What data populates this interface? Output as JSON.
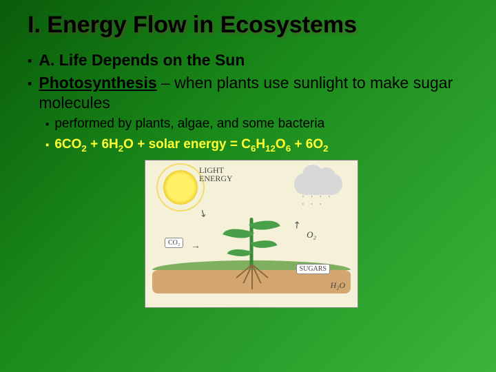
{
  "title": "I. Energy Flow in Ecosystems",
  "bullets": {
    "b1": "A. Life Depends on the Sun",
    "b2_term": "Photosynthesis",
    "b2_rest": " – when plants use sunlight to make sugar molecules",
    "b3": "performed by plants, algae, and some bacteria",
    "eq_p1": "6CO",
    "eq_s1": "2",
    "eq_p2": " + 6H",
    "eq_s2": "2",
    "eq_p3": "O + solar energy = C",
    "eq_s3": "6",
    "eq_p4": "H",
    "eq_s4": "12",
    "eq_p5": "O",
    "eq_s5": "6",
    "eq_p6": " + 6O",
    "eq_s6": "2"
  },
  "illustration": {
    "sun_label_l1": "LIGHT",
    "sun_label_l2": "ENERGY",
    "co2": "CO₂",
    "o2": "O₂",
    "sugars": "SUGARS",
    "h2o": "H₂O"
  },
  "colors": {
    "bg_start": "#0a5c0a",
    "bg_end": "#3cb43c",
    "title_color": "#000000",
    "equation_color": "#ffff33"
  }
}
